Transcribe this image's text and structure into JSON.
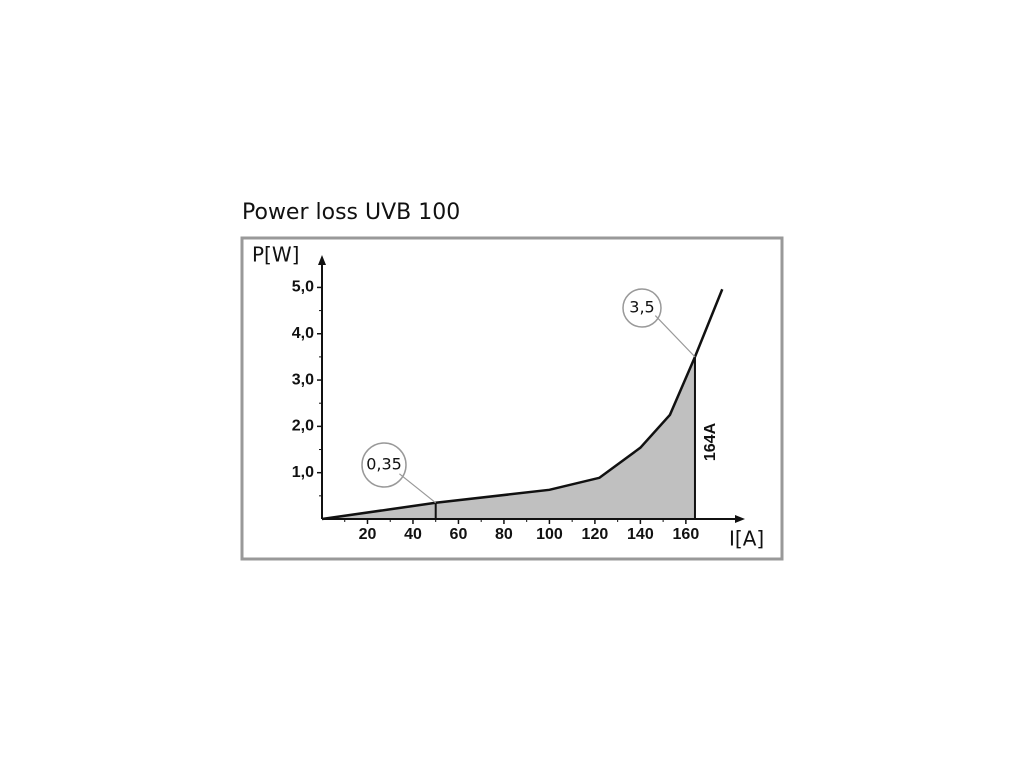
{
  "chart_data": {
    "type": "area-line",
    "title": "Power loss UVB 100",
    "y_label": "P[W]",
    "x_label": "I[A]",
    "x": [
      0,
      50,
      100,
      122,
      140,
      153,
      164,
      176
    ],
    "series": [
      {
        "values": [
          0,
          0.35,
          0.63,
          0.89,
          1.54,
          2.25,
          3.5,
          4.96
        ],
        "color": "#111111",
        "fill": "#c0c0c0"
      }
    ],
    "xlim": [
      0,
      186
    ],
    "ylim": [
      0,
      5.7
    ],
    "xticks": [
      20,
      40,
      60,
      80,
      100,
      120,
      140,
      160
    ],
    "yticks": [
      {
        "value": 1,
        "label": "1,0"
      },
      {
        "value": 2,
        "label": "2,0"
      },
      {
        "value": 3,
        "label": "3,0"
      },
      {
        "value": 4,
        "label": "4,0"
      },
      {
        "value": 5,
        "label": "5,0"
      }
    ],
    "annotations": [
      {
        "text": "0,35",
        "x": 50,
        "y": 0.35
      },
      {
        "text": "3,5",
        "x": 164,
        "y": 3.5
      },
      {
        "text": "164A",
        "x": 164
      }
    ]
  }
}
